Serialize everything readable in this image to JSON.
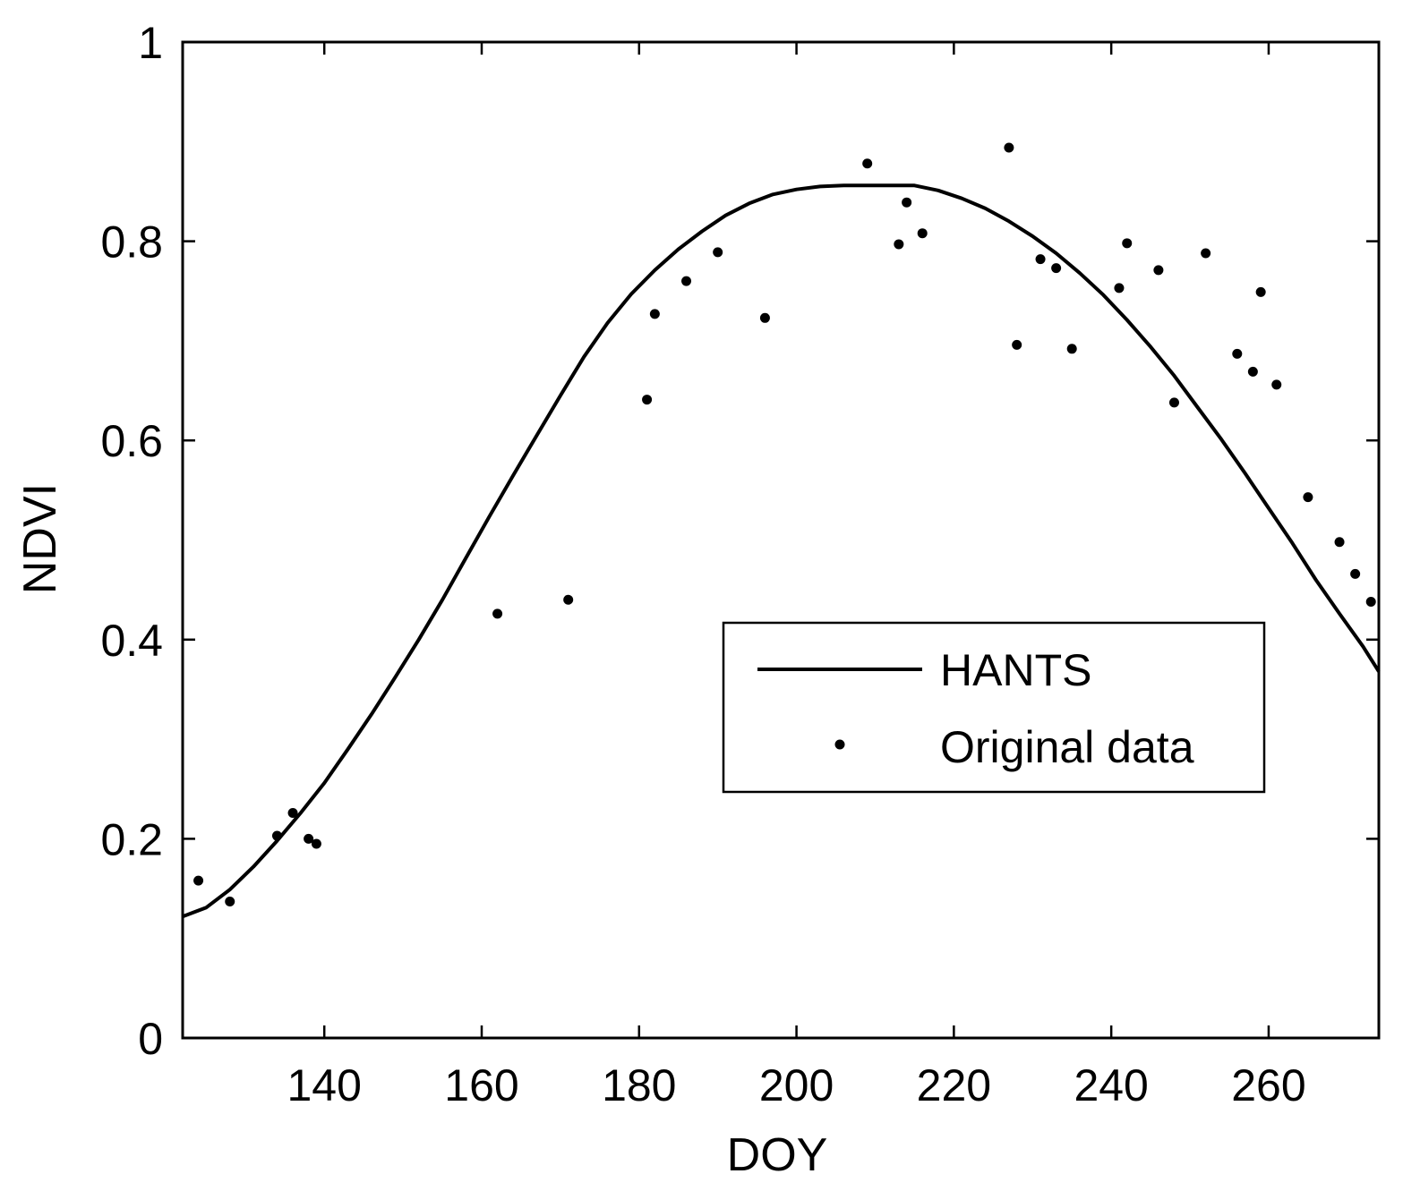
{
  "chart_data": {
    "type": "line",
    "title": "",
    "xlabel": "DOY",
    "ylabel": "NDVI",
    "xlim": [
      122,
      274
    ],
    "ylim": [
      0,
      1
    ],
    "x_ticks": [
      140,
      160,
      180,
      200,
      220,
      240,
      260
    ],
    "x_tick_labels": [
      "140",
      "160",
      "180",
      "200",
      "220",
      "240",
      "260"
    ],
    "y_ticks": [
      0,
      0.2,
      0.4,
      0.6,
      0.8,
      1
    ],
    "y_tick_labels": [
      "0",
      "0.2",
      "0.4",
      "0.6",
      "0.8",
      "1"
    ],
    "grid": false,
    "legend_position": "center-right",
    "series": [
      {
        "name": "HANTS",
        "kind": "line",
        "color": "#000000",
        "x": [
          122,
          125,
          128,
          131,
          134,
          137,
          140,
          143,
          146,
          149,
          152,
          155,
          158,
          161,
          164,
          167,
          170,
          173,
          176,
          179,
          182,
          185,
          188,
          191,
          194,
          197,
          200,
          203,
          206,
          209,
          212,
          215,
          218,
          221,
          224,
          227,
          230,
          233,
          236,
          239,
          242,
          245,
          248,
          251,
          254,
          257,
          260,
          263,
          266,
          269,
          272,
          274
        ],
        "y": [
          0.122,
          0.131,
          0.149,
          0.172,
          0.198,
          0.226,
          0.256,
          0.29,
          0.325,
          0.362,
          0.4,
          0.44,
          0.482,
          0.524,
          0.565,
          0.605,
          0.645,
          0.684,
          0.718,
          0.747,
          0.771,
          0.792,
          0.81,
          0.826,
          0.838,
          0.847,
          0.852,
          0.855,
          0.856,
          0.856,
          0.856,
          0.856,
          0.851,
          0.843,
          0.833,
          0.82,
          0.805,
          0.788,
          0.768,
          0.746,
          0.721,
          0.694,
          0.665,
          0.633,
          0.601,
          0.567,
          0.532,
          0.497,
          0.46,
          0.426,
          0.393,
          0.368
        ]
      },
      {
        "name": "Original data",
        "kind": "scatter",
        "color": "#000000",
        "x": [
          124,
          128,
          134,
          136,
          138,
          139,
          162,
          171,
          181,
          182,
          186,
          190,
          196,
          209,
          213,
          214,
          216,
          227,
          228,
          231,
          233,
          235,
          241,
          242,
          246,
          248,
          252,
          256,
          258,
          259,
          261,
          265,
          269,
          271,
          273
        ],
        "y": [
          0.158,
          0.137,
          0.203,
          0.226,
          0.2,
          0.195,
          0.426,
          0.44,
          0.641,
          0.727,
          0.76,
          0.789,
          0.723,
          0.878,
          0.797,
          0.839,
          0.808,
          0.894,
          0.696,
          0.782,
          0.773,
          0.692,
          0.753,
          0.798,
          0.771,
          0.638,
          0.788,
          0.687,
          0.669,
          0.749,
          0.656,
          0.543,
          0.498,
          0.466,
          0.438
        ]
      }
    ]
  }
}
